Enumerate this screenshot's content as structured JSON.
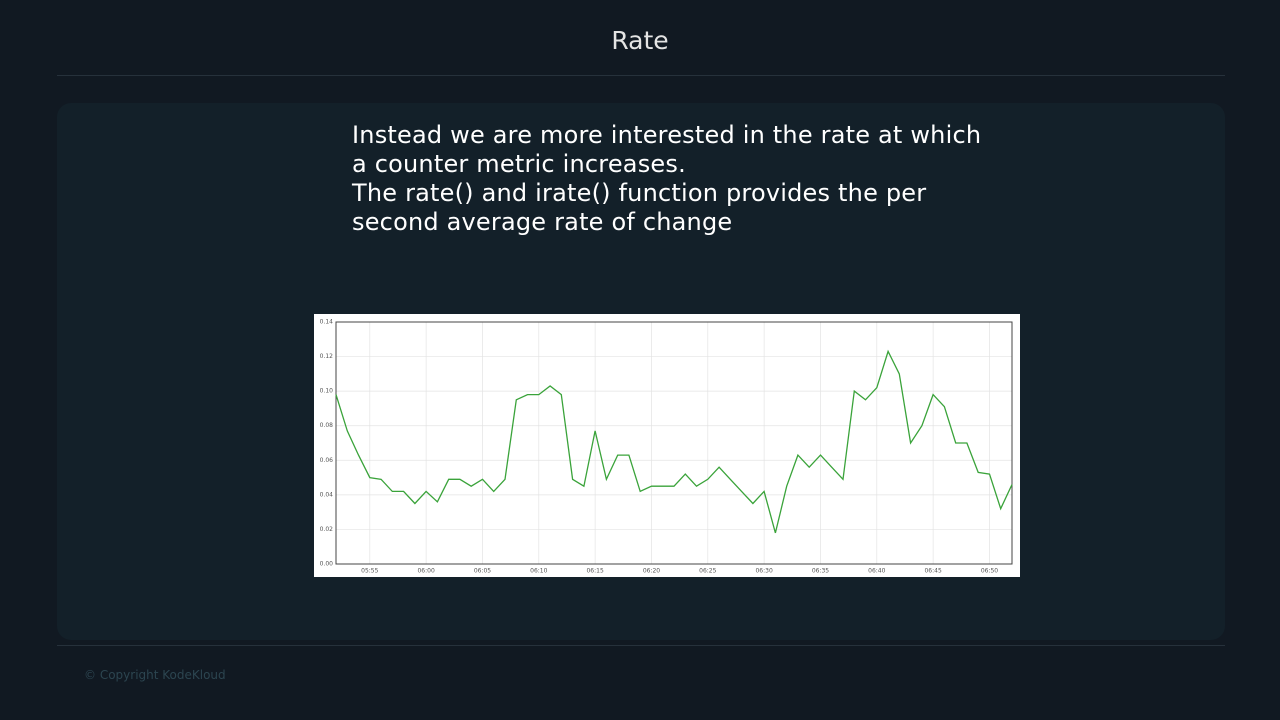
{
  "header": {
    "title": "Rate"
  },
  "body": {
    "lines": [
      "Instead we are more interested in the rate at which",
      "a counter metric increases.",
      "The rate() and irate() function provides the per",
      "second average rate of change"
    ]
  },
  "footer": {
    "copyright": "© Copyright KodeKloud"
  },
  "chart_data": {
    "type": "line",
    "x": [
      "05:52",
      "05:53",
      "05:54",
      "05:55",
      "05:56",
      "05:57",
      "05:58",
      "05:59",
      "06:00",
      "06:01",
      "06:02",
      "06:03",
      "06:04",
      "06:05",
      "06:06",
      "06:07",
      "06:08",
      "06:09",
      "06:10",
      "06:11",
      "06:12",
      "06:13",
      "06:14",
      "06:15",
      "06:16",
      "06:17",
      "06:18",
      "06:19",
      "06:20",
      "06:21",
      "06:22",
      "06:23",
      "06:24",
      "06:25",
      "06:26",
      "06:27",
      "06:28",
      "06:29",
      "06:30",
      "06:31",
      "06:32",
      "06:33",
      "06:34",
      "06:35",
      "06:36",
      "06:37",
      "06:38",
      "06:39",
      "06:40",
      "06:41",
      "06:42",
      "06:43",
      "06:44",
      "06:45",
      "06:46",
      "06:47",
      "06:48",
      "06:49",
      "06:50",
      "06:51",
      "06:52"
    ],
    "values": [
      0.098,
      0.077,
      0.063,
      0.05,
      0.049,
      0.042,
      0.042,
      0.035,
      0.042,
      0.036,
      0.049,
      0.049,
      0.045,
      0.049,
      0.042,
      0.049,
      0.095,
      0.098,
      0.098,
      0.103,
      0.098,
      0.049,
      0.045,
      0.077,
      0.049,
      0.063,
      0.063,
      0.042,
      0.045,
      0.045,
      0.045,
      0.052,
      0.045,
      0.049,
      0.056,
      0.049,
      0.042,
      0.035,
      0.042,
      0.018,
      0.045,
      0.063,
      0.056,
      0.063,
      0.056,
      0.049,
      0.1,
      0.095,
      0.102,
      0.123,
      0.11,
      0.07,
      0.08,
      0.098,
      0.091,
      0.07,
      0.07,
      0.053,
      0.052,
      0.032,
      0.046
    ],
    "color": "#3aa33a",
    "xlim": [
      "05:52",
      "06:52"
    ],
    "xticks": [
      "05:55",
      "06:00",
      "06:05",
      "06:10",
      "06:15",
      "06:20",
      "06:25",
      "06:30",
      "06:35",
      "06:40",
      "06:45",
      "06:50"
    ],
    "ylim": [
      0,
      0.14
    ],
    "yticks": [
      {
        "value": 0,
        "label": "0.00"
      },
      {
        "value": 0.02,
        "label": "0.02"
      },
      {
        "value": 0.04,
        "label": "0.04"
      },
      {
        "value": 0.06,
        "label": "0.06"
      },
      {
        "value": 0.08,
        "label": "0.08"
      },
      {
        "value": 0.1,
        "label": "0.10"
      },
      {
        "value": 0.12,
        "label": "0.12"
      },
      {
        "value": 0.14,
        "label": "0.14"
      }
    ],
    "grid": true
  }
}
